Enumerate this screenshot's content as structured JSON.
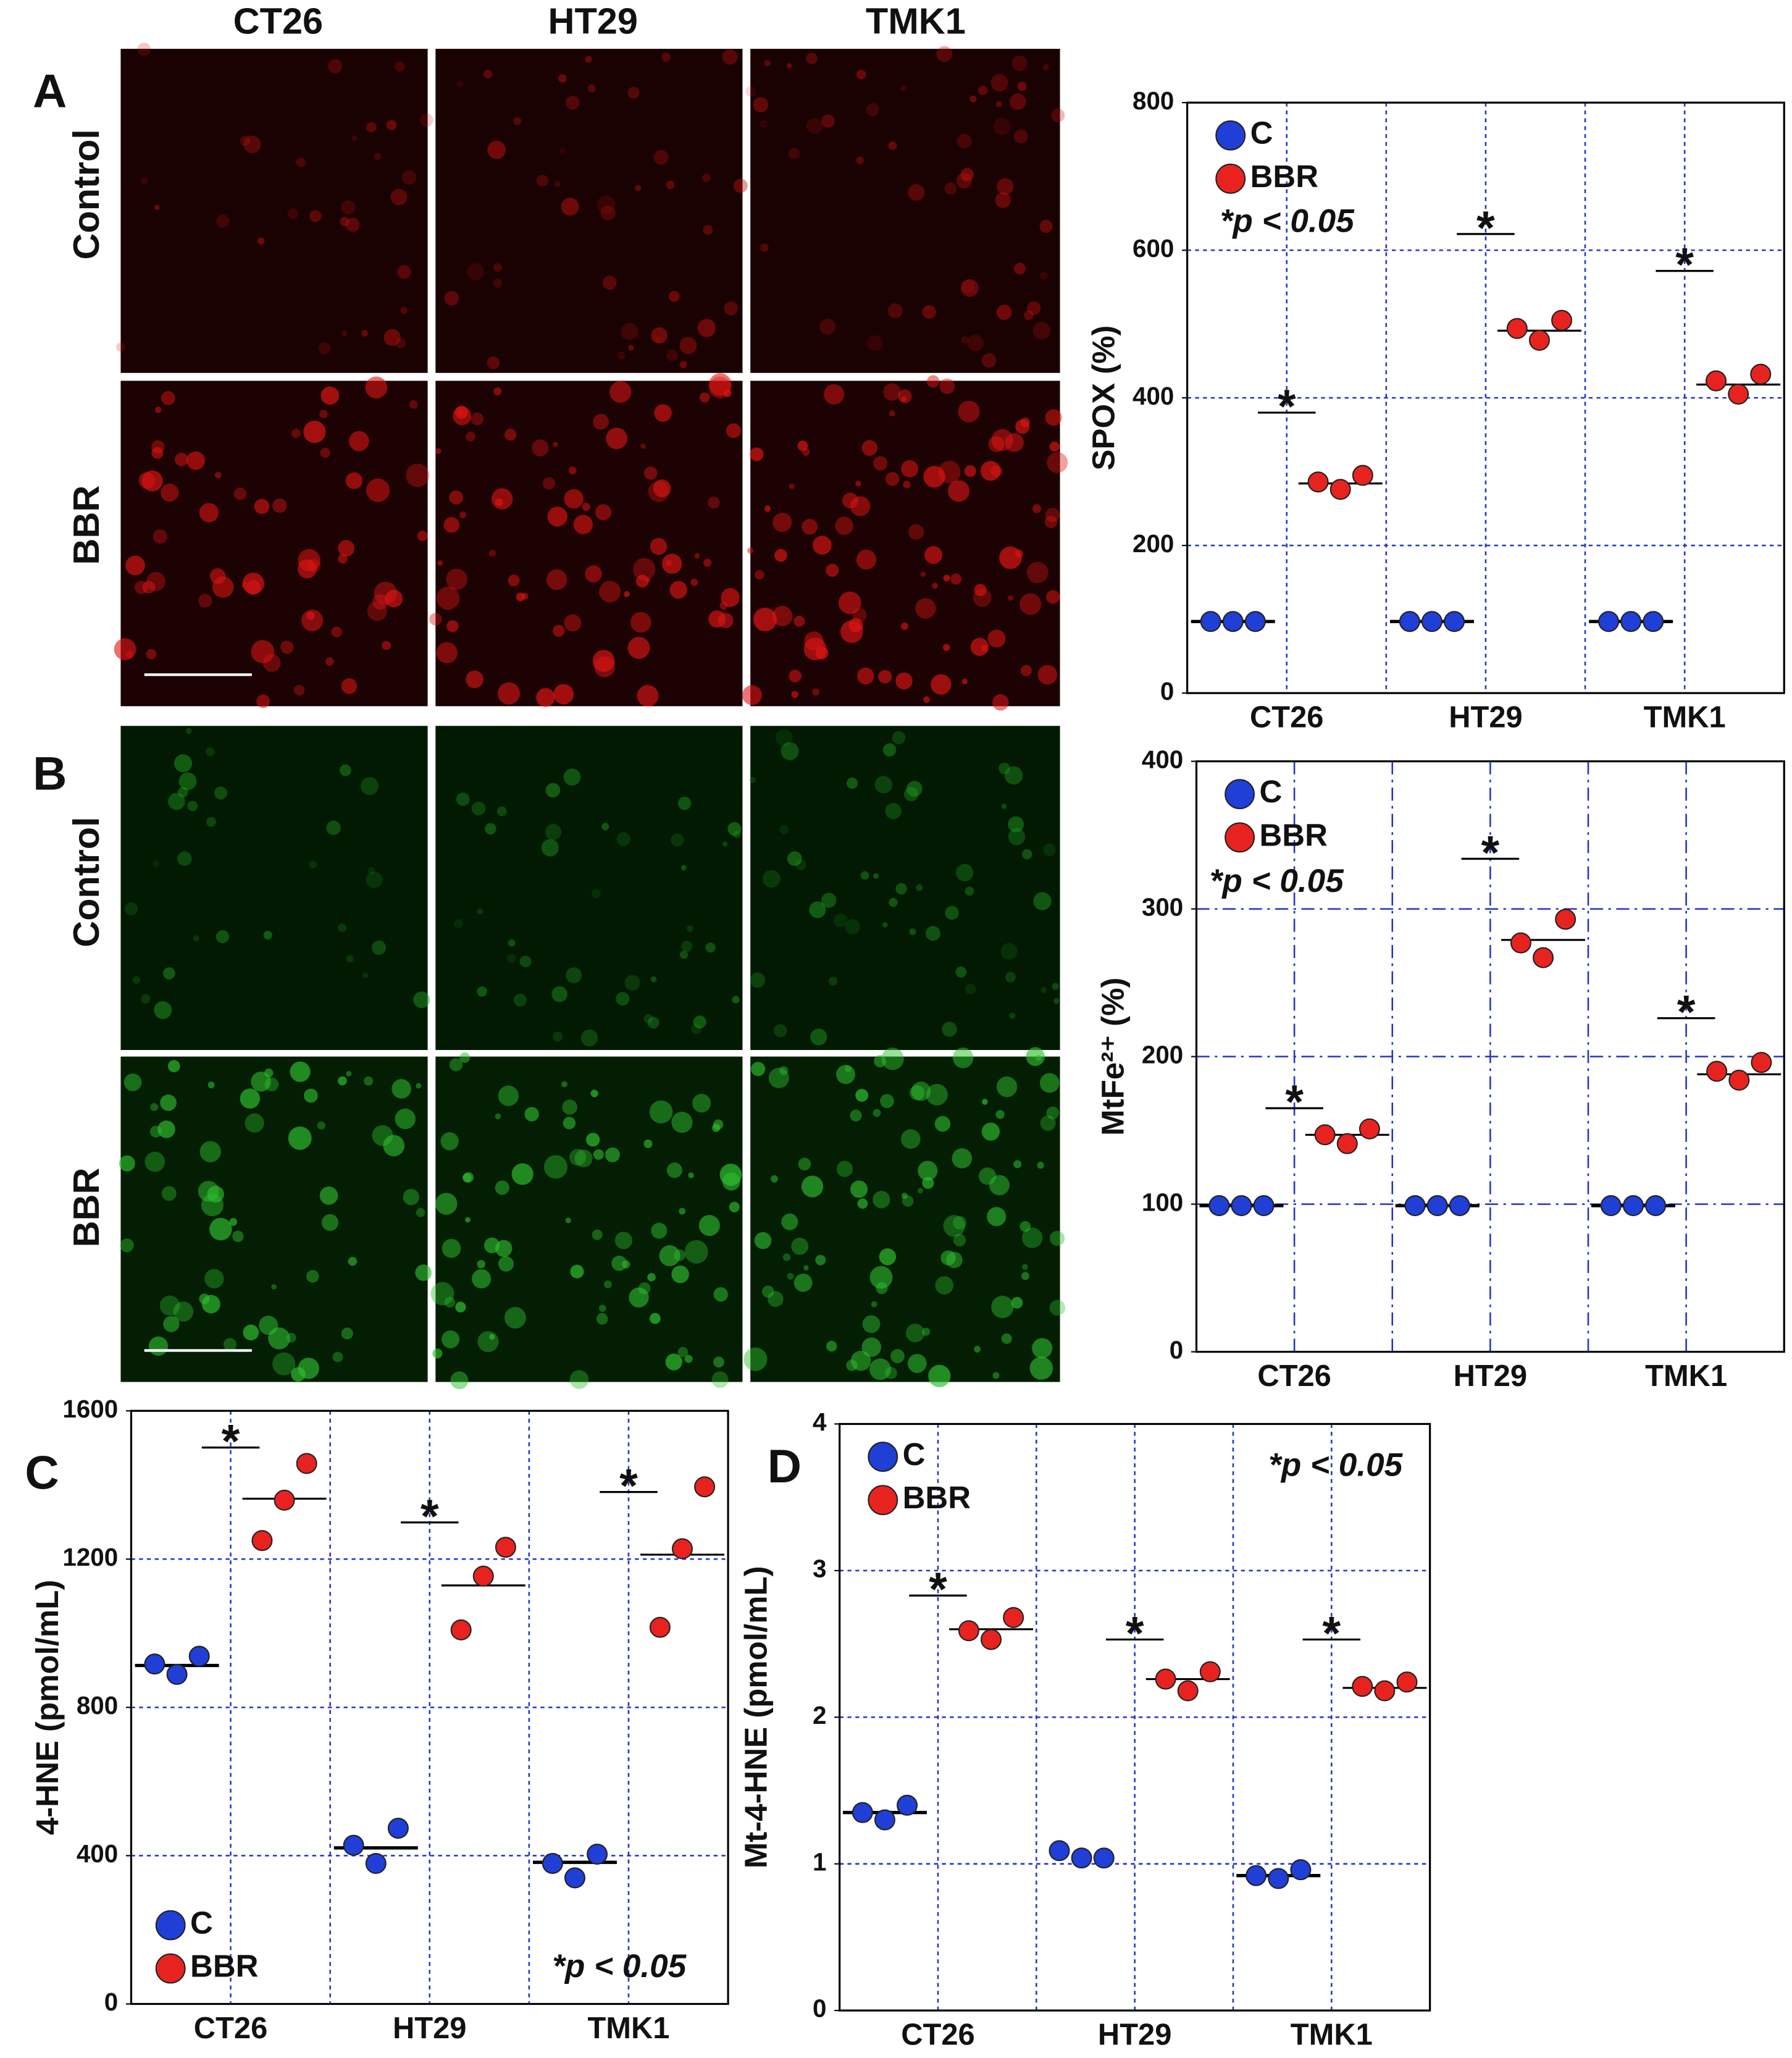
{
  "micrographs": {
    "columns": [
      "CT26",
      "HT29",
      "TMK1"
    ],
    "rows": [
      "Control",
      "BBR"
    ]
  },
  "chart_data": [
    {
      "type": "scatter",
      "panel": "A",
      "ylabel": "SPOX (%)",
      "categories": [
        "CT26",
        "HT29",
        "TMK1"
      ],
      "ylim": [
        0,
        800
      ],
      "yticks": [
        0,
        200,
        400,
        600,
        800
      ],
      "grid": true,
      "legend": "upper left",
      "note": "*p < 0.05",
      "significance_label": "*",
      "significance_y": [
        380,
        622,
        572
      ],
      "series": [
        {
          "name": "C",
          "color": "#1f3fd6",
          "values": [
            [
              97,
              97,
              97
            ],
            [
              97,
              97,
              97
            ],
            [
              97,
              97,
              97
            ]
          ],
          "means": [
            97,
            97,
            97
          ]
        },
        {
          "name": "BBR",
          "color": "#e8231f",
          "values": [
            [
              286,
              276,
              295
            ],
            [
              494,
              478,
              505
            ],
            [
              423,
              405,
              432
            ]
          ],
          "means": [
            284,
            491,
            418
          ]
        }
      ]
    },
    {
      "type": "scatter",
      "panel": "B",
      "ylabel": "MtFe²⁺ (%)",
      "categories": [
        "CT26",
        "HT29",
        "TMK1"
      ],
      "ylim": [
        0,
        400
      ],
      "yticks": [
        0,
        100,
        200,
        300,
        400
      ],
      "grid": true,
      "legend": "upper left",
      "note": "*p < 0.05",
      "significance_label": "*",
      "significance_y": [
        165,
        334,
        226
      ],
      "series": [
        {
          "name": "C",
          "color": "#1f3fd6",
          "values": [
            [
              99,
              99,
              99
            ],
            [
              99,
              99,
              99
            ],
            [
              99,
              99,
              99
            ]
          ],
          "means": [
            99,
            99,
            99
          ]
        },
        {
          "name": "BBR",
          "color": "#e8231f",
          "values": [
            [
              147,
              141,
              151
            ],
            [
              277,
              267,
              293
            ],
            [
              190,
              184,
              196
            ]
          ],
          "means": [
            147,
            279,
            188
          ]
        }
      ]
    },
    {
      "type": "scatter",
      "panel": "C",
      "ylabel": "4-HNE (pmol/mL)",
      "categories": [
        "CT26",
        "HT29",
        "TMK1"
      ],
      "ylim": [
        0,
        1600
      ],
      "yticks": [
        0,
        400,
        800,
        1200,
        1600
      ],
      "grid": true,
      "legend": "lower left",
      "note": "*p < 0.05",
      "significance_label": "*",
      "significance_y": [
        1501,
        1299,
        1381
      ],
      "series": [
        {
          "name": "C",
          "color": "#1f3fd6",
          "values": [
            [
              917,
              889,
              938
            ],
            [
              428,
              379,
              474
            ],
            [
              379,
              340,
              404
            ]
          ],
          "means": [
            913,
            421,
            382
          ]
        },
        {
          "name": "BBR",
          "color": "#e8231f",
          "values": [
            [
              1250,
              1359,
              1458
            ],
            [
              1009,
              1154,
              1232
            ],
            [
              1016,
              1228,
              1395
            ]
          ],
          "means": [
            1363,
            1129,
            1212
          ]
        }
      ]
    },
    {
      "type": "scatter",
      "panel": "D",
      "ylabel": "Mt-4-HNE (pmol/mL)",
      "categories": [
        "CT26",
        "HT29",
        "TMK1"
      ],
      "ylim": [
        0,
        4
      ],
      "yticks": [
        0,
        1,
        2,
        3,
        4
      ],
      "grid": true,
      "legend": "upper left",
      "note": "*p < 0.05",
      "significance_label": "*",
      "significance_y": [
        2.83,
        2.53,
        2.53
      ],
      "series": [
        {
          "name": "C",
          "color": "#1f3fd6",
          "values": [
            [
              1.35,
              1.3,
              1.4
            ],
            [
              1.09,
              1.04,
              1.04
            ],
            [
              0.92,
              0.9,
              0.96
            ]
          ],
          "means": [
            1.35,
            null,
            0.92
          ]
        },
        {
          "name": "BBR",
          "color": "#e8231f",
          "values": [
            [
              2.59,
              2.53,
              2.68
            ],
            [
              2.26,
              2.18,
              2.31
            ],
            [
              2.21,
              2.18,
              2.24
            ]
          ],
          "means": [
            2.6,
            2.26,
            2.2
          ]
        }
      ]
    }
  ]
}
